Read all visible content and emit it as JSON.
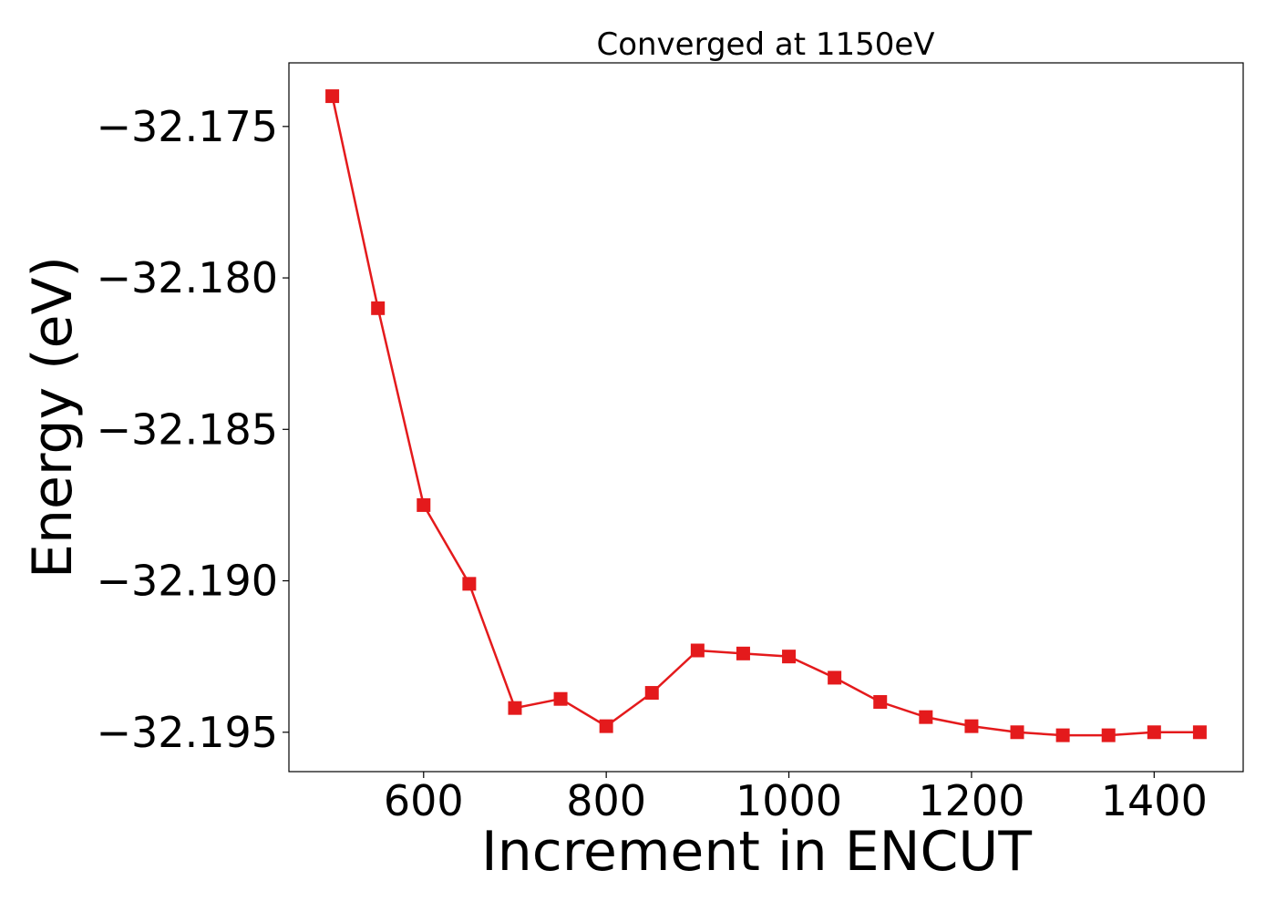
{
  "chart_data": {
    "type": "line",
    "title": "Converged at 1150eV",
    "xlabel": "Increment in ENCUT",
    "ylabel": "Energy (eV)",
    "xlim": [
      452.5,
      1497.5
    ],
    "ylim": [
      -32.1963,
      -32.1729
    ],
    "xticks": [
      600,
      800,
      1000,
      1200,
      1400
    ],
    "yticks": [
      -32.175,
      -32.18,
      -32.185,
      -32.19,
      -32.195
    ],
    "ytick_labels": [
      "−32.175",
      "−32.180",
      "−32.185",
      "−32.190",
      "−32.195"
    ],
    "grid": false,
    "series": [
      {
        "color": "#e41a1c",
        "marker": "square",
        "x": [
          500,
          550,
          600,
          650,
          700,
          750,
          800,
          850,
          900,
          950,
          1000,
          1050,
          1100,
          1150,
          1200,
          1250,
          1300,
          1350,
          1400,
          1450
        ],
        "y": [
          -32.174,
          -32.181,
          -32.1875,
          -32.1901,
          -32.1942,
          -32.1939,
          -32.1948,
          -32.1937,
          -32.1923,
          -32.1924,
          -32.1925,
          -32.1932,
          -32.194,
          -32.1945,
          -32.1948,
          -32.195,
          -32.1951,
          -32.1951,
          -32.195,
          -32.195
        ]
      }
    ]
  }
}
